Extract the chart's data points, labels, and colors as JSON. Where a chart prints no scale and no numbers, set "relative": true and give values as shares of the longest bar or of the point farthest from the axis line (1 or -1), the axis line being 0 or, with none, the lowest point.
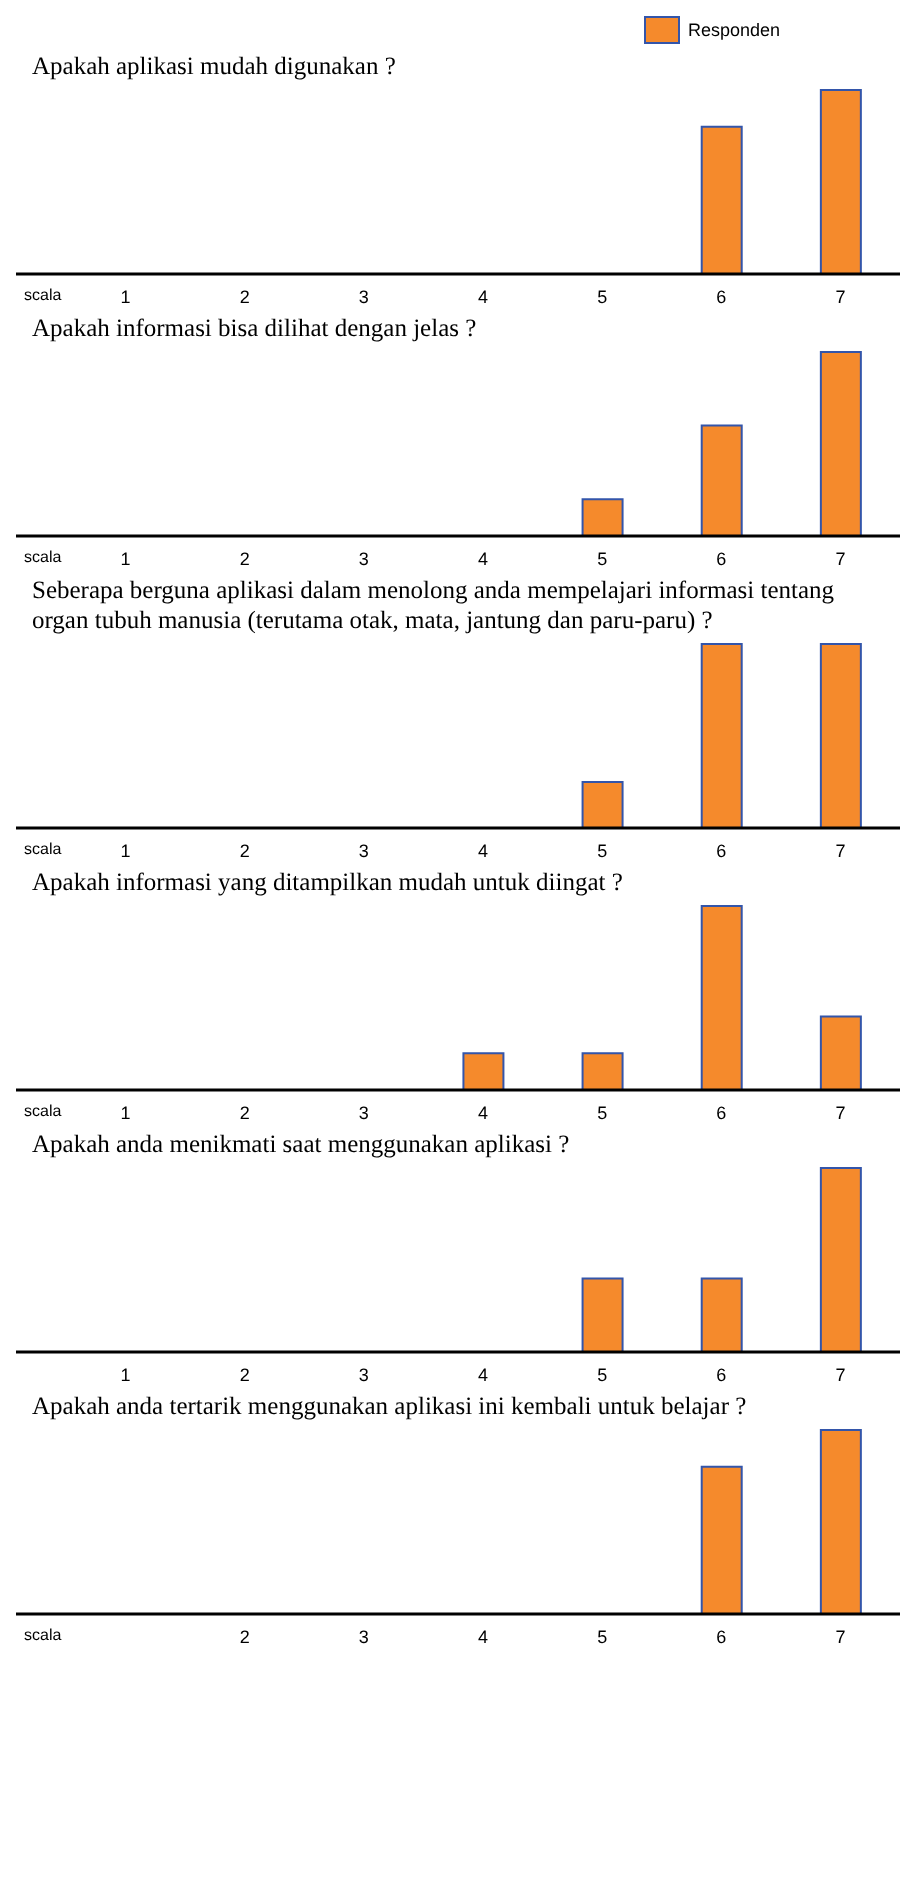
{
  "chart_data": [
    {
      "type": "bar",
      "title": "Apakah aplikasi mudah digunakan ?",
      "xlabel": "scala",
      "categories": [
        "1",
        "2",
        "3",
        "4",
        "5",
        "6",
        "7"
      ],
      "relative": true,
      "legend": "top right",
      "series": [
        {
          "name": "Responden",
          "color": "#f58a2c",
          "values": [
            0,
            0,
            0,
            0,
            0,
            0.8,
            1
          ]
        }
      ]
    },
    {
      "type": "bar",
      "title": "Apakah informasi bisa dilihat dengan jelas ?",
      "xlabel": "scala",
      "categories": [
        "1",
        "2",
        "3",
        "4",
        "5",
        "6",
        "7"
      ],
      "relative": true,
      "series": [
        {
          "color": "#f58a2c",
          "values": [
            0,
            0,
            0,
            0,
            0.2,
            0.6,
            1
          ]
        }
      ]
    },
    {
      "type": "bar",
      "title": "Seberapa berguna aplikasi dalam menolong anda mempelajari informasi tentang organ tubuh manusia (terutama otak, mata, jantung dan paru-paru) ?",
      "xlabel": "scala",
      "categories": [
        "1",
        "2",
        "3",
        "4",
        "5",
        "6",
        "7"
      ],
      "relative": true,
      "series": [
        {
          "color": "#f58a2c",
          "values": [
            0,
            0,
            0,
            0,
            0.25,
            1,
            1
          ]
        }
      ]
    },
    {
      "type": "bar",
      "title": "Apakah informasi yang ditampilkan mudah untuk diingat ?",
      "xlabel": "scala",
      "categories": [
        "1",
        "2",
        "3",
        "4",
        "5",
        "6",
        "7"
      ],
      "relative": true,
      "series": [
        {
          "color": "#f58a2c",
          "values": [
            0,
            0,
            0,
            0.2,
            0.2,
            1,
            0.4
          ]
        }
      ]
    },
    {
      "type": "bar",
      "title": "Apakah anda menikmati saat menggunakan aplikasi ?",
      "categories": [
        "1",
        "2",
        "3",
        "4",
        "5",
        "6",
        "7"
      ],
      "relative": true,
      "series": [
        {
          "color": "#f58a2c",
          "values": [
            0,
            0,
            0,
            0,
            0.4,
            0.4,
            1
          ]
        }
      ]
    },
    {
      "type": "bar",
      "title": "Apakah anda tertarik menggunakan aplikasi ini kembali untuk belajar ?",
      "xlabel": "scala",
      "categories": [
        null,
        "2",
        "3",
        "4",
        "5",
        "6",
        "7"
      ],
      "relative": true,
      "series": [
        {
          "color": "#f58a2c",
          "values": [
            0,
            0,
            0,
            0,
            0,
            0.8,
            1
          ]
        }
      ]
    }
  ]
}
